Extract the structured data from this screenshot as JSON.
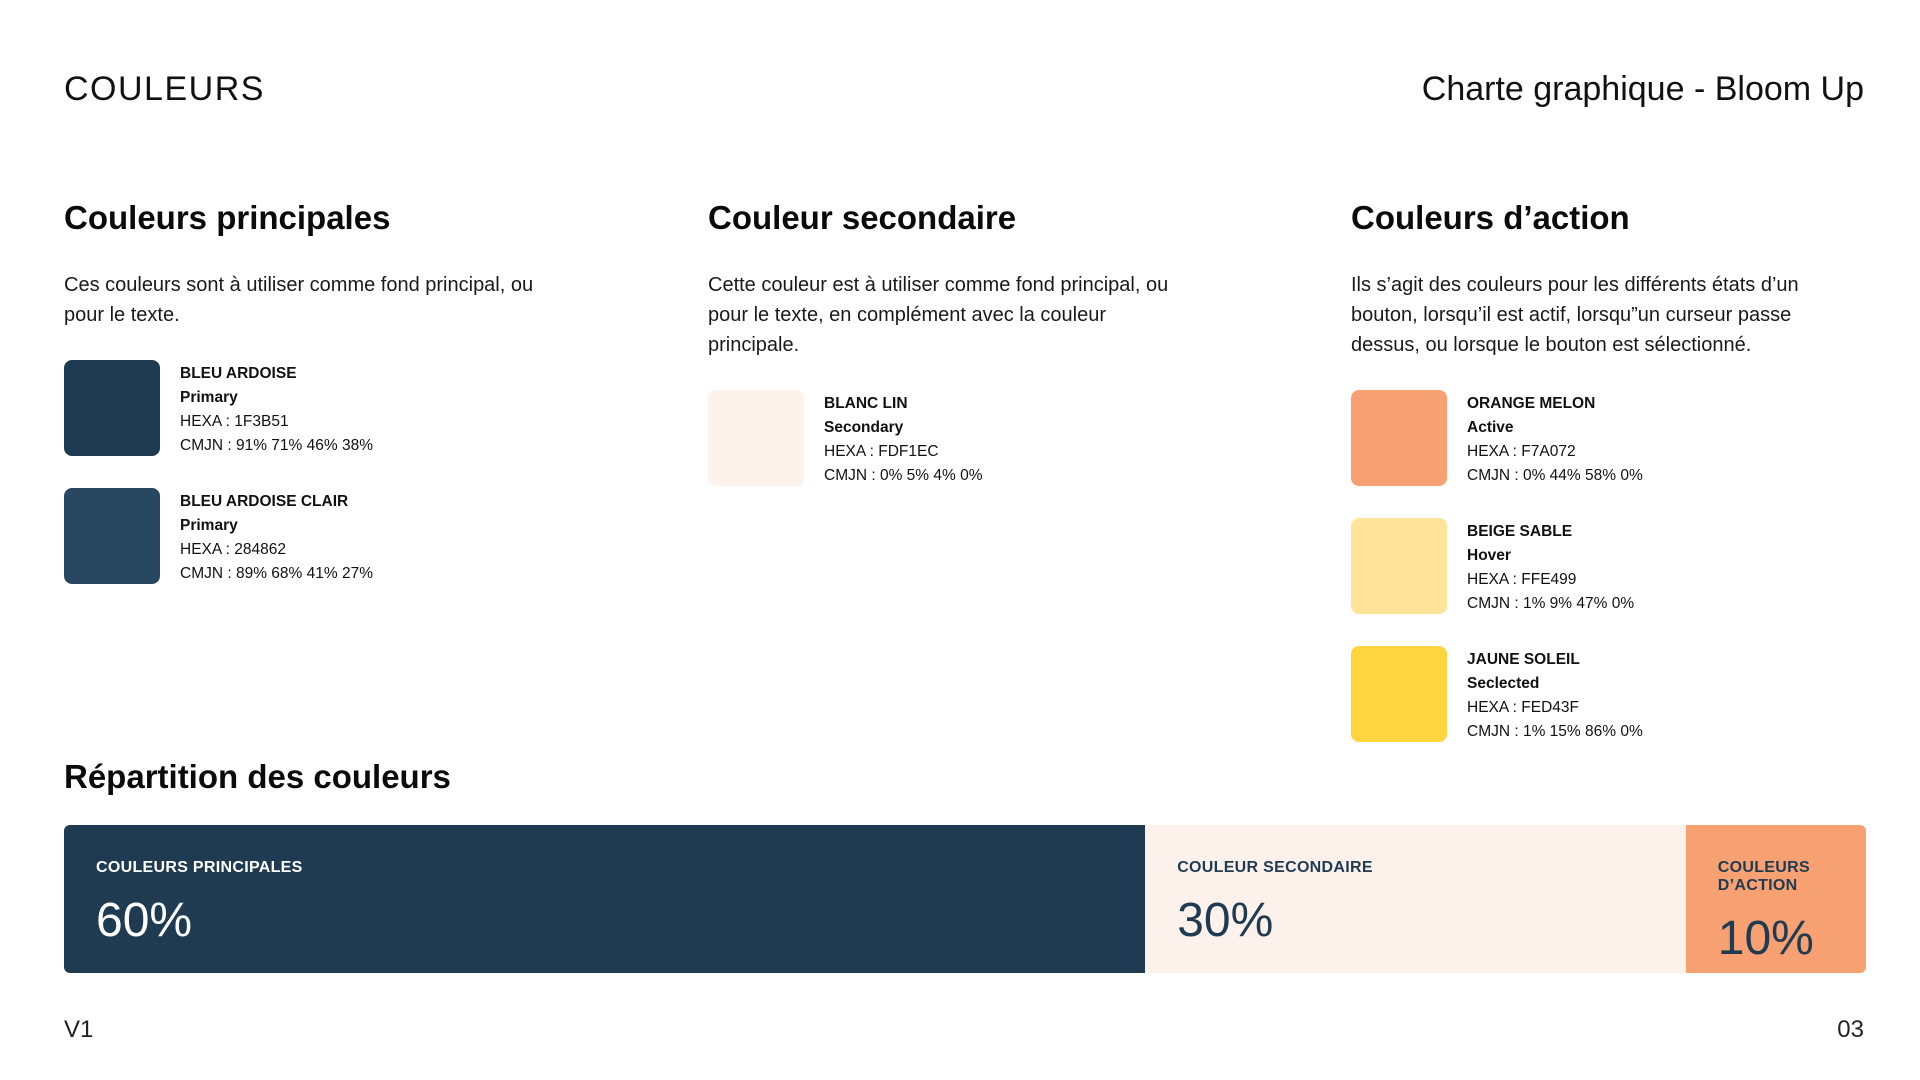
{
  "header": {
    "left_title": "COULEURS",
    "right_title": "Charte graphique - Bloom Up"
  },
  "sections": [
    {
      "title": "Couleurs principales",
      "description": "Ces couleurs sont à utiliser comme fond principal, ou pour le texte.",
      "swatches": [
        {
          "name": "BLEU ARDOISE",
          "role": "Primary",
          "hexa": "HEXA : 1F3B51",
          "cmjn": "CMJN : 91% 71% 46% 38%",
          "color": "#1F3B51"
        },
        {
          "name": "BLEU ARDOISE CLAIR",
          "role": "Primary",
          "hexa": "HEXA : 284862",
          "cmjn": "CMJN : 89% 68% 41% 27%",
          "color": "#284862"
        }
      ]
    },
    {
      "title": "Couleur secondaire",
      "description": "Cette couleur est à utiliser comme fond principal, ou pour le texte, en complément avec la couleur principale.",
      "swatches": [
        {
          "name": "BLANC LIN",
          "role": "Secondary",
          "hexa": "HEXA : FDF1EC",
          "cmjn": "CMJN : 0% 5% 4% 0%",
          "color": "#FDF1EC"
        }
      ]
    },
    {
      "title": "Couleurs d’action",
      "description": "Ils s’agit des couleurs pour les différents états d’un bouton, lorsqu’il est actif, lorsqu”un curseur passe dessus, ou lorsque le bouton est sélectionné.",
      "swatches": [
        {
          "name": "ORANGE MELON",
          "role": "Active",
          "hexa": "HEXA : F7A072",
          "cmjn": "CMJN : 0% 44% 58% 0%",
          "color": "#F7A072"
        },
        {
          "name": "BEIGE SABLE",
          "role": "Hover",
          "hexa": "HEXA : FFE499",
          "cmjn": "CMJN : 1% 9% 47% 0%",
          "color": "#FFE499"
        },
        {
          "name": "JAUNE SOLEIL",
          "role": "Seclected",
          "hexa": "HEXA : FED43F",
          "cmjn": "CMJN : 1% 15% 86% 0%",
          "color": "#FED43F"
        }
      ]
    }
  ],
  "repartition": {
    "title": "Répartition des couleurs",
    "segments": [
      {
        "label": "COULEURS PRINCIPALES",
        "value_label": "60%",
        "value": 60,
        "bg": "#1F3B51",
        "fg": "#FFFFFF"
      },
      {
        "label": "COULEUR SECONDAIRE",
        "value_label": "30%",
        "value": 30,
        "bg": "#FDF1EC",
        "fg": "#1F3B51"
      },
      {
        "label": "COULEURS D’ACTION",
        "value_label": "10%",
        "value": 10,
        "bg": "#F7A072",
        "fg": "#1F3B51"
      }
    ]
  },
  "footer": {
    "version": "V1",
    "page_number": "03"
  }
}
